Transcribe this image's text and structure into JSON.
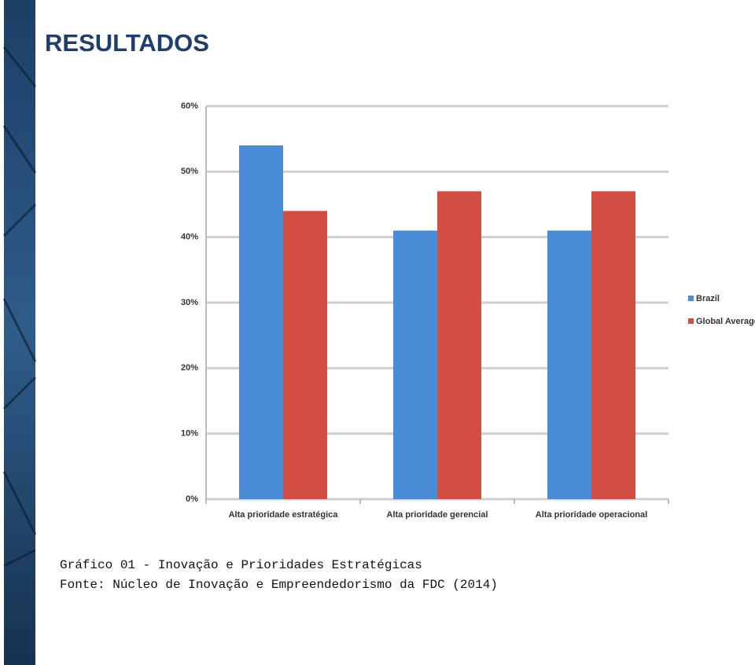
{
  "title": "RESULTADOS",
  "chart_data": {
    "type": "bar",
    "categories": [
      "Alta prioridade estratégica",
      "Alta prioridade gerencial",
      "Alta prioridade operacional"
    ],
    "series": [
      {
        "name": "Brazil",
        "color": "#4a8dd6",
        "values": [
          54,
          41,
          41
        ]
      },
      {
        "name": "Global Average",
        "color": "#d24e42",
        "values": [
          44,
          47,
          47
        ]
      }
    ],
    "ylim": [
      0,
      60
    ],
    "yticks": [
      {
        "value": 0,
        "label": "0%"
      },
      {
        "value": 10,
        "label": "10%"
      },
      {
        "value": 20,
        "label": "20%"
      },
      {
        "value": 30,
        "label": "30%"
      },
      {
        "value": 40,
        "label": "40%"
      },
      {
        "value": 50,
        "label": "50%"
      },
      {
        "value": 60,
        "label": "60%"
      }
    ],
    "grid": true,
    "legend": "right"
  },
  "captions": [
    "Gráfico 01 - Inovação e Prioridades Estratégicas",
    "Fonte: Núcleo de Inovação e Empreendedorismo da FDC (2014)"
  ]
}
